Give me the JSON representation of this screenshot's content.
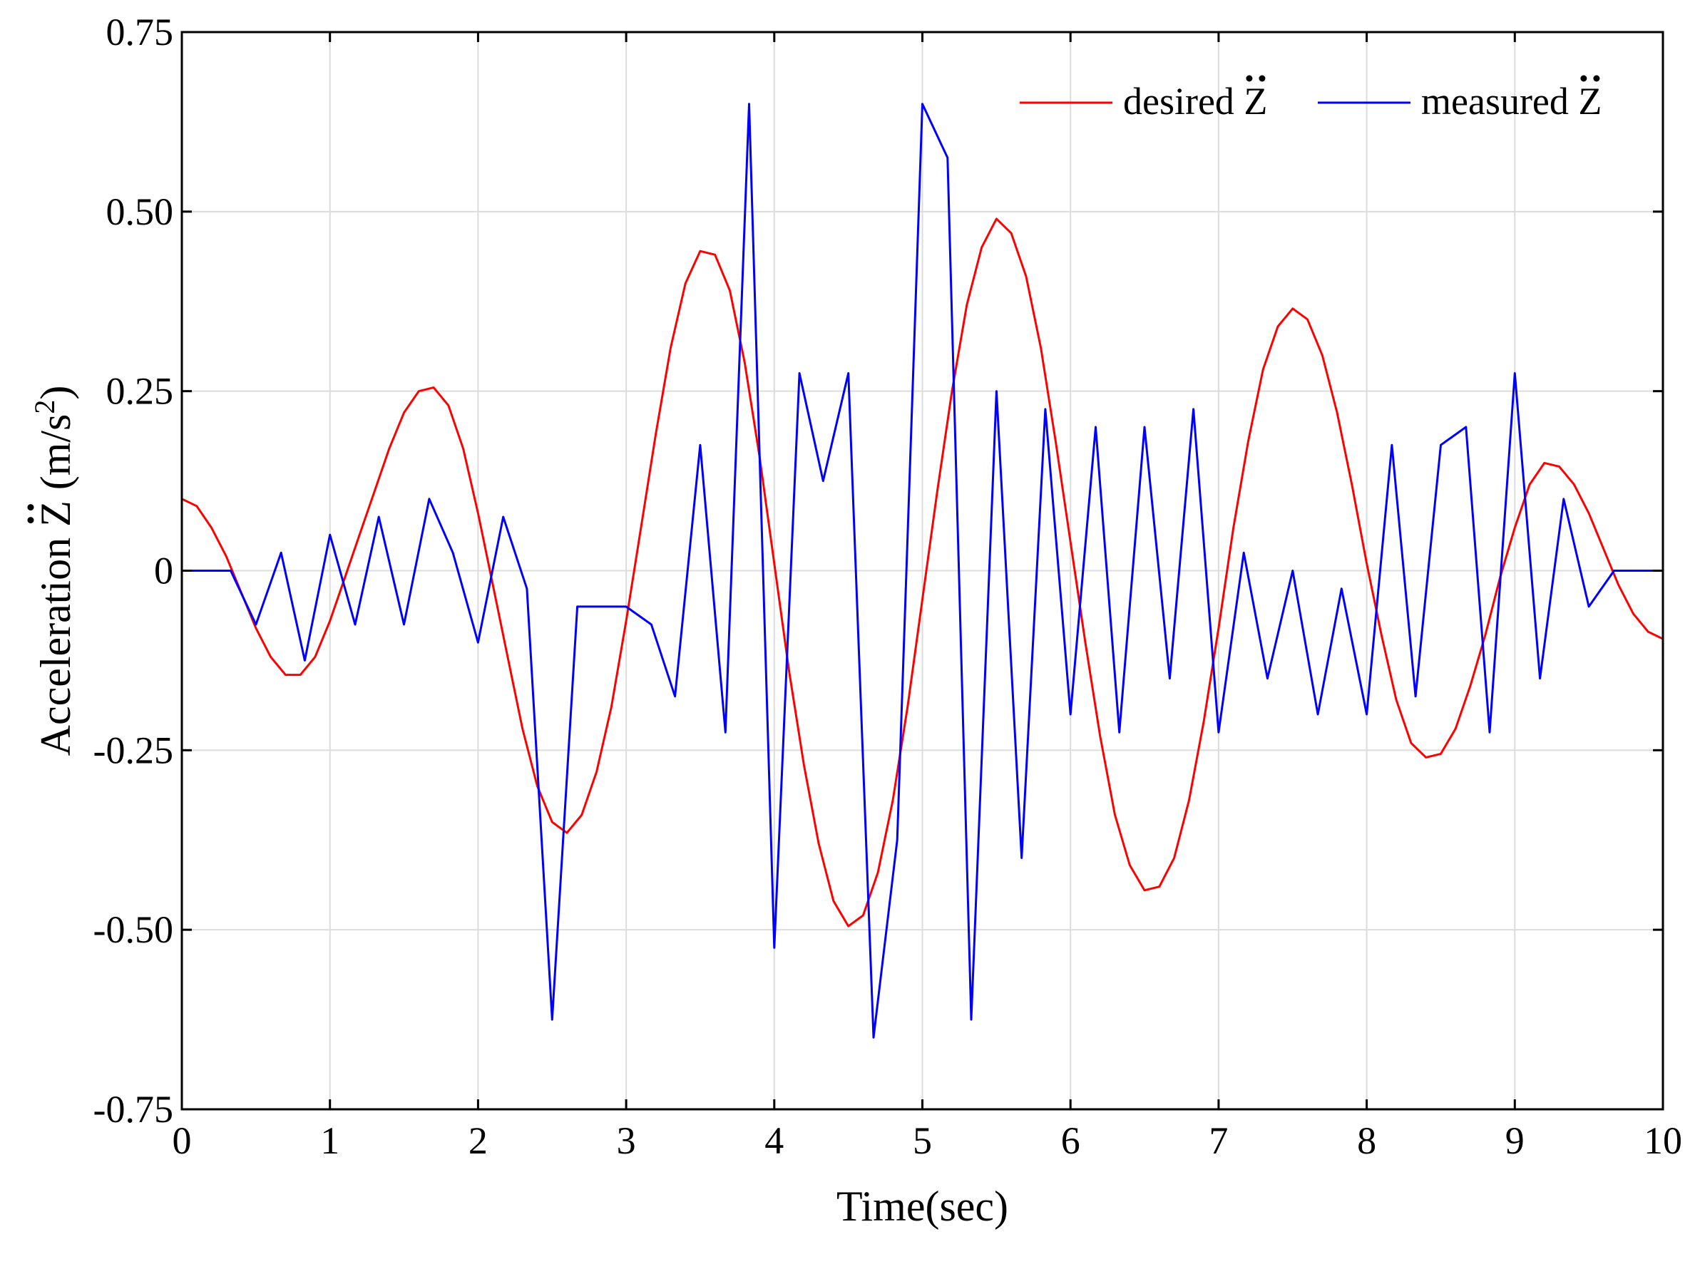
{
  "chart_data": {
    "type": "line",
    "title": "",
    "xlabel": "Time(sec)",
    "ylabel": "Acceleration Z̈ (m/s²)",
    "ylabel_parts": {
      "prefix": "Acceleration ",
      "symbol": "Z",
      "unit_open": " (m/s",
      "unit_exp": "2",
      "unit_close": ")"
    },
    "xlim": [
      0,
      10
    ],
    "ylim": [
      -0.75,
      0.75
    ],
    "xticks": [
      0,
      1,
      2,
      3,
      4,
      5,
      6,
      7,
      8,
      9,
      10
    ],
    "xtick_labels": [
      "0",
      "1",
      "2",
      "3",
      "4",
      "5",
      "6",
      "7",
      "8",
      "9",
      "10"
    ],
    "yticks": [
      0.75,
      0.5,
      0.25,
      0,
      -0.25,
      -0.5,
      -0.75
    ],
    "ytick_labels": [
      "0.75",
      "0.50",
      "0.25",
      "0",
      "-0.25",
      "-0.50",
      "-0.75"
    ],
    "grid": true,
    "legend_position": "top-right",
    "series": [
      {
        "name": "desired Z̈",
        "legend_word": "desired",
        "legend_symbol": "Z",
        "color": "#ff0000",
        "x": [
          0,
          0.1,
          0.2,
          0.3,
          0.4,
          0.5,
          0.6,
          0.7,
          0.8,
          0.9,
          1.0,
          1.1,
          1.2,
          1.3,
          1.4,
          1.5,
          1.6,
          1.7,
          1.8,
          1.9,
          2.0,
          2.1,
          2.2,
          2.3,
          2.4,
          2.5,
          2.6,
          2.7,
          2.8,
          2.9,
          3.0,
          3.1,
          3.2,
          3.3,
          3.4,
          3.5,
          3.6,
          3.7,
          3.8,
          3.9,
          4.0,
          4.1,
          4.2,
          4.3,
          4.4,
          4.5,
          4.6,
          4.7,
          4.8,
          4.9,
          5.0,
          5.1,
          5.2,
          5.3,
          5.4,
          5.5,
          5.6,
          5.7,
          5.8,
          5.9,
          6.0,
          6.1,
          6.2,
          6.3,
          6.4,
          6.5,
          6.6,
          6.7,
          6.8,
          6.9,
          7.0,
          7.1,
          7.2,
          7.3,
          7.4,
          7.5,
          7.6,
          7.7,
          7.8,
          7.9,
          8.0,
          8.1,
          8.2,
          8.3,
          8.4,
          8.5,
          8.6,
          8.7,
          8.8,
          8.9,
          9.0,
          9.1,
          9.2,
          9.3,
          9.4,
          9.5,
          9.6,
          9.7,
          9.8,
          9.9,
          10.0
        ],
        "values": [
          0.1,
          0.09,
          0.06,
          0.02,
          -0.03,
          -0.08,
          -0.12,
          -0.145,
          -0.145,
          -0.12,
          -0.07,
          -0.01,
          0.05,
          0.11,
          0.17,
          0.22,
          0.25,
          0.255,
          0.23,
          0.17,
          0.08,
          -0.02,
          -0.12,
          -0.22,
          -0.3,
          -0.35,
          -0.365,
          -0.34,
          -0.28,
          -0.19,
          -0.07,
          0.06,
          0.19,
          0.31,
          0.4,
          0.445,
          0.44,
          0.39,
          0.29,
          0.16,
          0.01,
          -0.14,
          -0.27,
          -0.38,
          -0.46,
          -0.495,
          -0.48,
          -0.42,
          -0.32,
          -0.19,
          -0.04,
          0.11,
          0.25,
          0.37,
          0.45,
          0.49,
          0.47,
          0.41,
          0.31,
          0.18,
          0.04,
          -0.1,
          -0.23,
          -0.34,
          -0.41,
          -0.445,
          -0.44,
          -0.4,
          -0.32,
          -0.21,
          -0.08,
          0.06,
          0.18,
          0.28,
          0.34,
          0.365,
          0.35,
          0.3,
          0.22,
          0.12,
          0.01,
          -0.09,
          -0.18,
          -0.24,
          -0.26,
          -0.255,
          -0.22,
          -0.16,
          -0.09,
          -0.01,
          0.06,
          0.12,
          0.15,
          0.145,
          0.12,
          0.08,
          0.03,
          -0.02,
          -0.06,
          -0.085,
          -0.095
        ]
      },
      {
        "name": "measured Z̈",
        "legend_word": "measured",
        "legend_symbol": "Z",
        "color": "#0000ff",
        "x": [
          0,
          0.17,
          0.33,
          0.5,
          0.67,
          0.83,
          1.0,
          1.17,
          1.33,
          1.5,
          1.67,
          1.83,
          2.0,
          2.17,
          2.33,
          2.5,
          2.67,
          2.83,
          3.0,
          3.17,
          3.33,
          3.5,
          3.67,
          3.83,
          4.0,
          4.17,
          4.33,
          4.5,
          4.67,
          4.83,
          5.0,
          5.17,
          5.33,
          5.5,
          5.67,
          5.83,
          6.0,
          6.17,
          6.33,
          6.5,
          6.67,
          6.83,
          7.0,
          7.17,
          7.33,
          7.5,
          7.67,
          7.83,
          8.0,
          8.17,
          8.33,
          8.5,
          8.67,
          8.83,
          9.0,
          9.17,
          9.33,
          9.5,
          9.67,
          9.83,
          10.0
        ],
        "values": [
          0,
          0,
          0,
          -0.075,
          0.025,
          -0.125,
          0.05,
          -0.075,
          0.075,
          -0.075,
          0.1,
          0.025,
          -0.1,
          0.075,
          -0.025,
          -0.625,
          -0.05,
          -0.05,
          -0.05,
          -0.075,
          -0.175,
          0.175,
          -0.225,
          0.65,
          -0.525,
          0.275,
          0.125,
          0.275,
          -0.65,
          -0.375,
          0.65,
          0.575,
          -0.625,
          0.25,
          -0.4,
          0.225,
          -0.2,
          0.2,
          -0.225,
          0.2,
          -0.15,
          0.225,
          -0.225,
          0.025,
          -0.15,
          0,
          -0.2,
          -0.025,
          -0.2,
          0.175,
          -0.175,
          0.175,
          0.2,
          -0.225,
          0.275,
          -0.15,
          0.1,
          -0.05,
          0,
          0,
          0
        ]
      }
    ]
  }
}
